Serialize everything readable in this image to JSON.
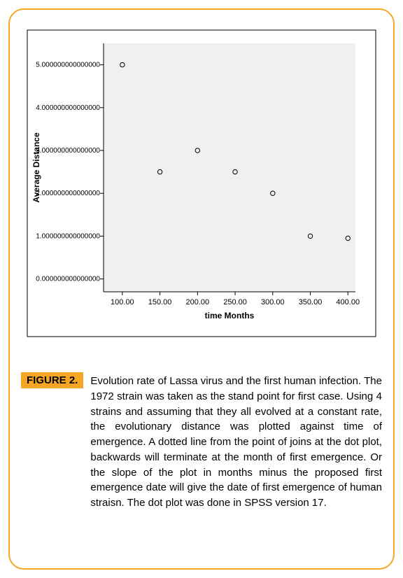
{
  "figure_label": "FIGURE 2.",
  "caption": "Evolution rate of Lassa virus and the first human infection. The 1972 strain was taken as the stand point for first case. Using 4 strains and assuming that they all evolved at a constant rate, the evolutionary distance was plotted against time of emergence. A dotted line from the point of joins at the dot plot, backwards will terminate at the month of first emergence. Or the slope of the plot in months minus the proposed first emergence date will give the date of first emergence of human straisn. The dot plot was done in SPSS version 17.",
  "chart": {
    "type": "scatter",
    "xlabel": "time Months",
    "ylabel": "Average Distance",
    "xlim": [
      75,
      410
    ],
    "ylim": [
      -0.3,
      5.5
    ],
    "xticks": [
      100,
      150,
      200,
      250,
      300,
      350,
      400
    ],
    "xtick_labels": [
      "100.00",
      "150.00",
      "200.00",
      "250.00",
      "300.00",
      "350.00",
      "400.00"
    ],
    "yticks": [
      0,
      1,
      2,
      3,
      4,
      5
    ],
    "ytick_labels": [
      "0.000000000000000",
      "1.000000000000000",
      "2.000000000000000",
      "3.000000000000000",
      "4.000000000000000",
      "5.000000000000000"
    ],
    "points": [
      {
        "x": 100,
        "y": 5.0
      },
      {
        "x": 150,
        "y": 2.5
      },
      {
        "x": 200,
        "y": 3.0
      },
      {
        "x": 250,
        "y": 2.5
      },
      {
        "x": 300,
        "y": 2.0
      },
      {
        "x": 350,
        "y": 1.0
      },
      {
        "x": 400,
        "y": 0.95
      }
    ],
    "marker_radius": 3.2,
    "marker_stroke": "#000000",
    "marker_fill": "none",
    "plot_bg": "#f0f0f0",
    "outer_bg": "#ffffff",
    "axis_color": "#000000",
    "label_fontsize": 12,
    "tick_fontsize": 11
  }
}
